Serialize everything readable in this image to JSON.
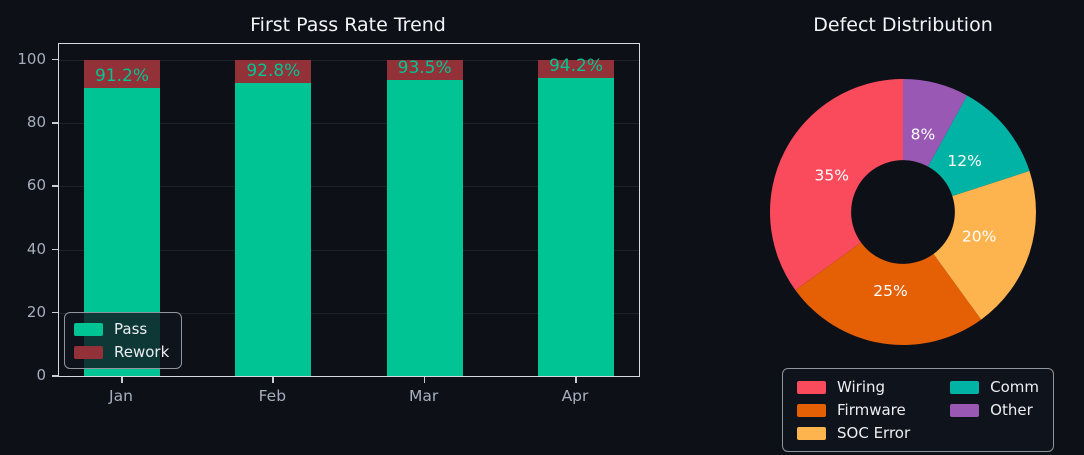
{
  "figure": {
    "background": "#0d1017"
  },
  "style": {
    "title_color": "#f2f3f6",
    "tick_label_color": "#a6aebe",
    "axis_frame_color": "#d6d9de",
    "grid_color": "rgba(255,255,255,0.08)",
    "legend_background": "rgba(16,21,30,0.8)",
    "legend_border": "#8f959d",
    "legend_text": "#eceef2"
  },
  "chart_data": [
    {
      "type": "bar",
      "title": "First Pass Rate Trend",
      "stacked": true,
      "categories": [
        "Jan",
        "Feb",
        "Mar",
        "Apr"
      ],
      "series": [
        {
          "name": "Pass",
          "color": "#00c493",
          "values": [
            91.2,
            92.8,
            93.5,
            94.2
          ]
        },
        {
          "name": "Rework",
          "color": "#923138",
          "values": [
            8.8,
            7.2,
            6.5,
            5.8
          ]
        }
      ],
      "bar_value_labels": [
        "91.2%",
        "92.8%",
        "93.5%",
        "94.2%"
      ],
      "bar_value_label_color": "#00c493",
      "ylim": [
        0,
        105
      ],
      "yticks": [
        0,
        20,
        40,
        60,
        80,
        100
      ],
      "grid": true,
      "legend": {
        "position": "lower-left",
        "items": [
          "Pass",
          "Rework"
        ]
      }
    },
    {
      "type": "pie",
      "title": "Defect Distribution",
      "labels": [
        "Wiring",
        "Firmware",
        "SOC Error",
        "Comm",
        "Other"
      ],
      "values": [
        35,
        25,
        20,
        12,
        8
      ],
      "colors": [
        "#fa4b5c",
        "#e55f04",
        "#fdb44e",
        "#00b3a4",
        "#9a58b5"
      ],
      "slice_labels": [
        "35%",
        "25%",
        "20%",
        "12%",
        "8%"
      ],
      "slice_label_color": "#ffffff",
      "donut_hole_ratio": 0.39,
      "start_angle": 90,
      "direction": "counterclockwise",
      "legend": {
        "position": "below-center",
        "columns": 2,
        "items": [
          "Wiring",
          "Firmware",
          "SOC Error",
          "Comm",
          "Other"
        ]
      }
    }
  ]
}
